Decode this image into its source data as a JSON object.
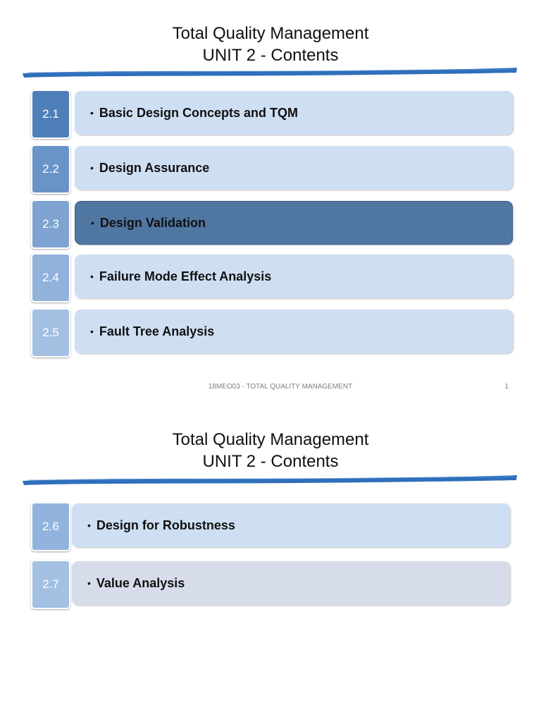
{
  "slides": [
    {
      "title_line1": "Total Quality Management",
      "title_line2": "UNIT 2 - Contents",
      "items": [
        {
          "number": "2.1",
          "label": "Basic Design Concepts and TQM",
          "num_color": "#4f7fb8"
        },
        {
          "number": "2.2",
          "label": "Design Assurance",
          "num_color": "#6a94c8"
        },
        {
          "number": "2.3",
          "label": "Design Validation",
          "num_color": "#7ea3d1"
        },
        {
          "number": "2.4",
          "label": "Failure Mode Effect Analysis",
          "num_color": "#91b2db"
        },
        {
          "number": "2.5",
          "label": "Fault Tree Analysis",
          "num_color": "#a3c0e3"
        }
      ],
      "footer": "18MEO03 - TOTAL QUALITY MANAGEMENT",
      "page": "1"
    },
    {
      "title_line1": "Total Quality Management",
      "title_line2": "UNIT 2 - Contents",
      "items": [
        {
          "number": "2.6",
          "label": "Design for Robustness",
          "num_color": "#91b3de"
        },
        {
          "number": "2.7",
          "label": "Value Analysis",
          "num_color": "#a3c0e3"
        }
      ]
    }
  ],
  "bullet": "•",
  "colors": {
    "brush": "#2f6fbb",
    "bar": "#cfdff3",
    "bar_active": "#5076a2",
    "bar_grey": "#d6dcea"
  }
}
